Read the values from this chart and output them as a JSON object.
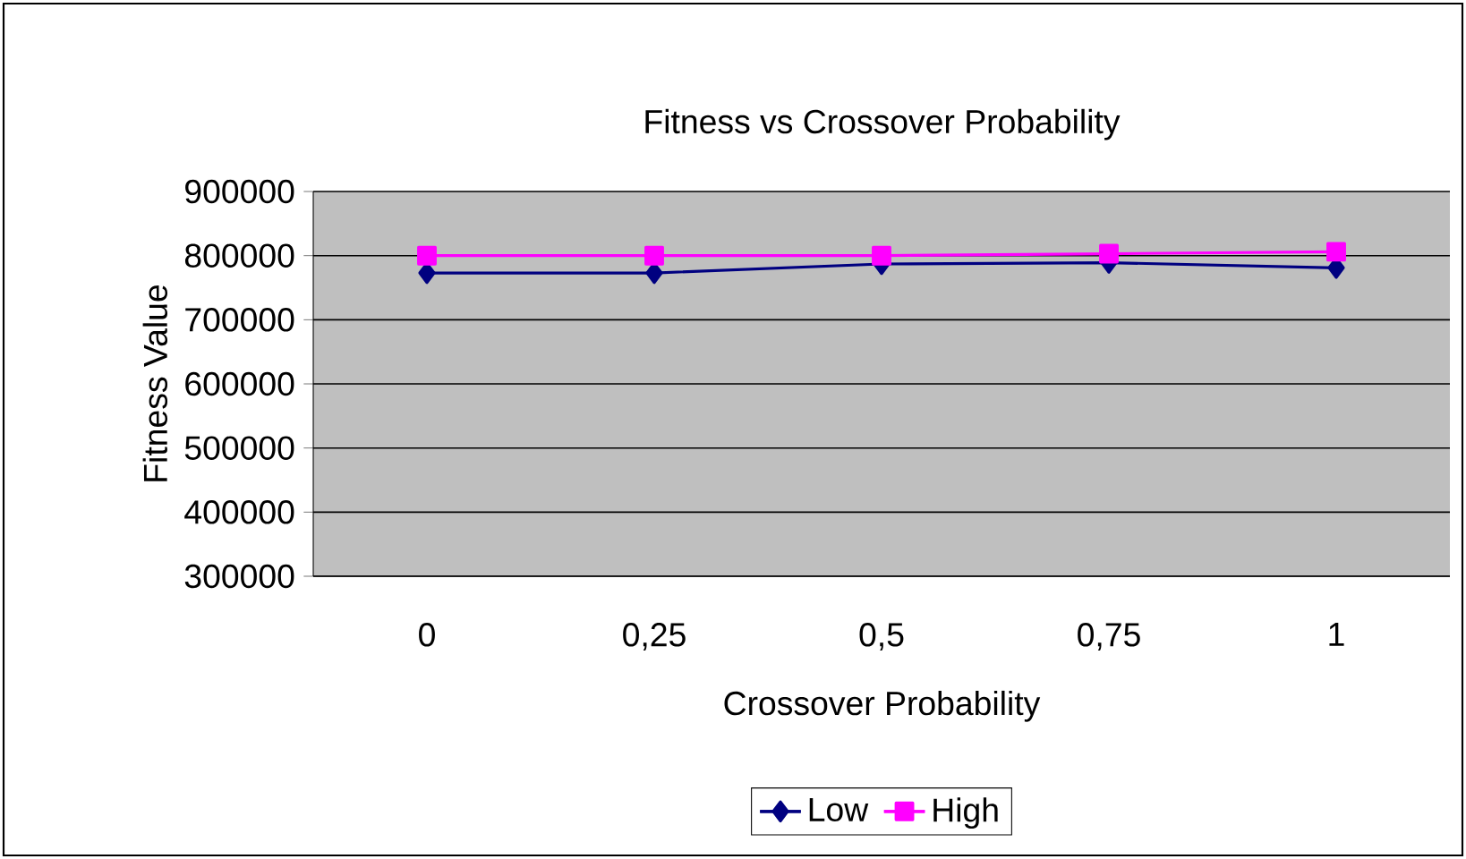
{
  "chart_data": {
    "type": "line",
    "title": "Fitness vs Crossover Probability",
    "xlabel": "Crossover Probability",
    "ylabel": "Fitness Value",
    "categories": [
      "0",
      "0,25",
      "0,5",
      "0,75",
      "1"
    ],
    "series": [
      {
        "name": "Low",
        "color": "#000080",
        "marker": "diamond",
        "values": [
          773000,
          773000,
          787000,
          789000,
          781000
        ]
      },
      {
        "name": "High",
        "color": "#ff00ff",
        "marker": "square",
        "values": [
          800000,
          800000,
          800000,
          803000,
          806000
        ]
      }
    ],
    "ylim": [
      300000,
      900000
    ],
    "yticks": [
      300000,
      400000,
      500000,
      600000,
      700000,
      800000,
      900000
    ],
    "grid": "y",
    "legend": "bottom"
  }
}
